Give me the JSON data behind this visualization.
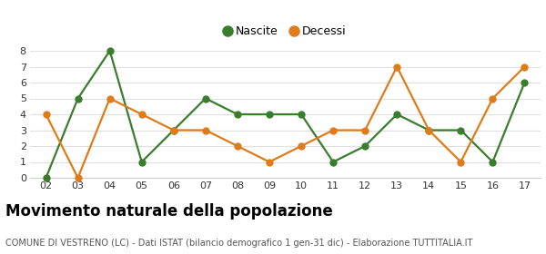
{
  "years": [
    "02",
    "03",
    "04",
    "05",
    "06",
    "07",
    "08",
    "09",
    "10",
    "11",
    "12",
    "13",
    "14",
    "15",
    "16",
    "17"
  ],
  "nascite": [
    0,
    5,
    8,
    1,
    3,
    5,
    4,
    4,
    4,
    1,
    2,
    4,
    3,
    3,
    1,
    6
  ],
  "decessi": [
    4,
    0,
    5,
    4,
    3,
    3,
    2,
    1,
    2,
    3,
    3,
    7,
    3,
    1,
    5,
    7
  ],
  "nascite_color": "#3a7d2c",
  "decessi_color": "#e07b1a",
  "ylim": [
    0,
    8
  ],
  "yticks": [
    0,
    1,
    2,
    3,
    4,
    5,
    6,
    7,
    8
  ],
  "title": "Movimento naturale della popolazione",
  "subtitle": "COMUNE DI VESTRENO (LC) - Dati ISTAT (bilancio demografico 1 gen-31 dic) - Elaborazione TUTTITALIA.IT",
  "legend_nascite": "Nascite",
  "legend_decessi": "Decessi",
  "background_color": "#ffffff",
  "grid_color": "#e0e0e0",
  "title_fontsize": 12,
  "subtitle_fontsize": 7.0,
  "marker_size": 5,
  "linewidth": 1.6
}
